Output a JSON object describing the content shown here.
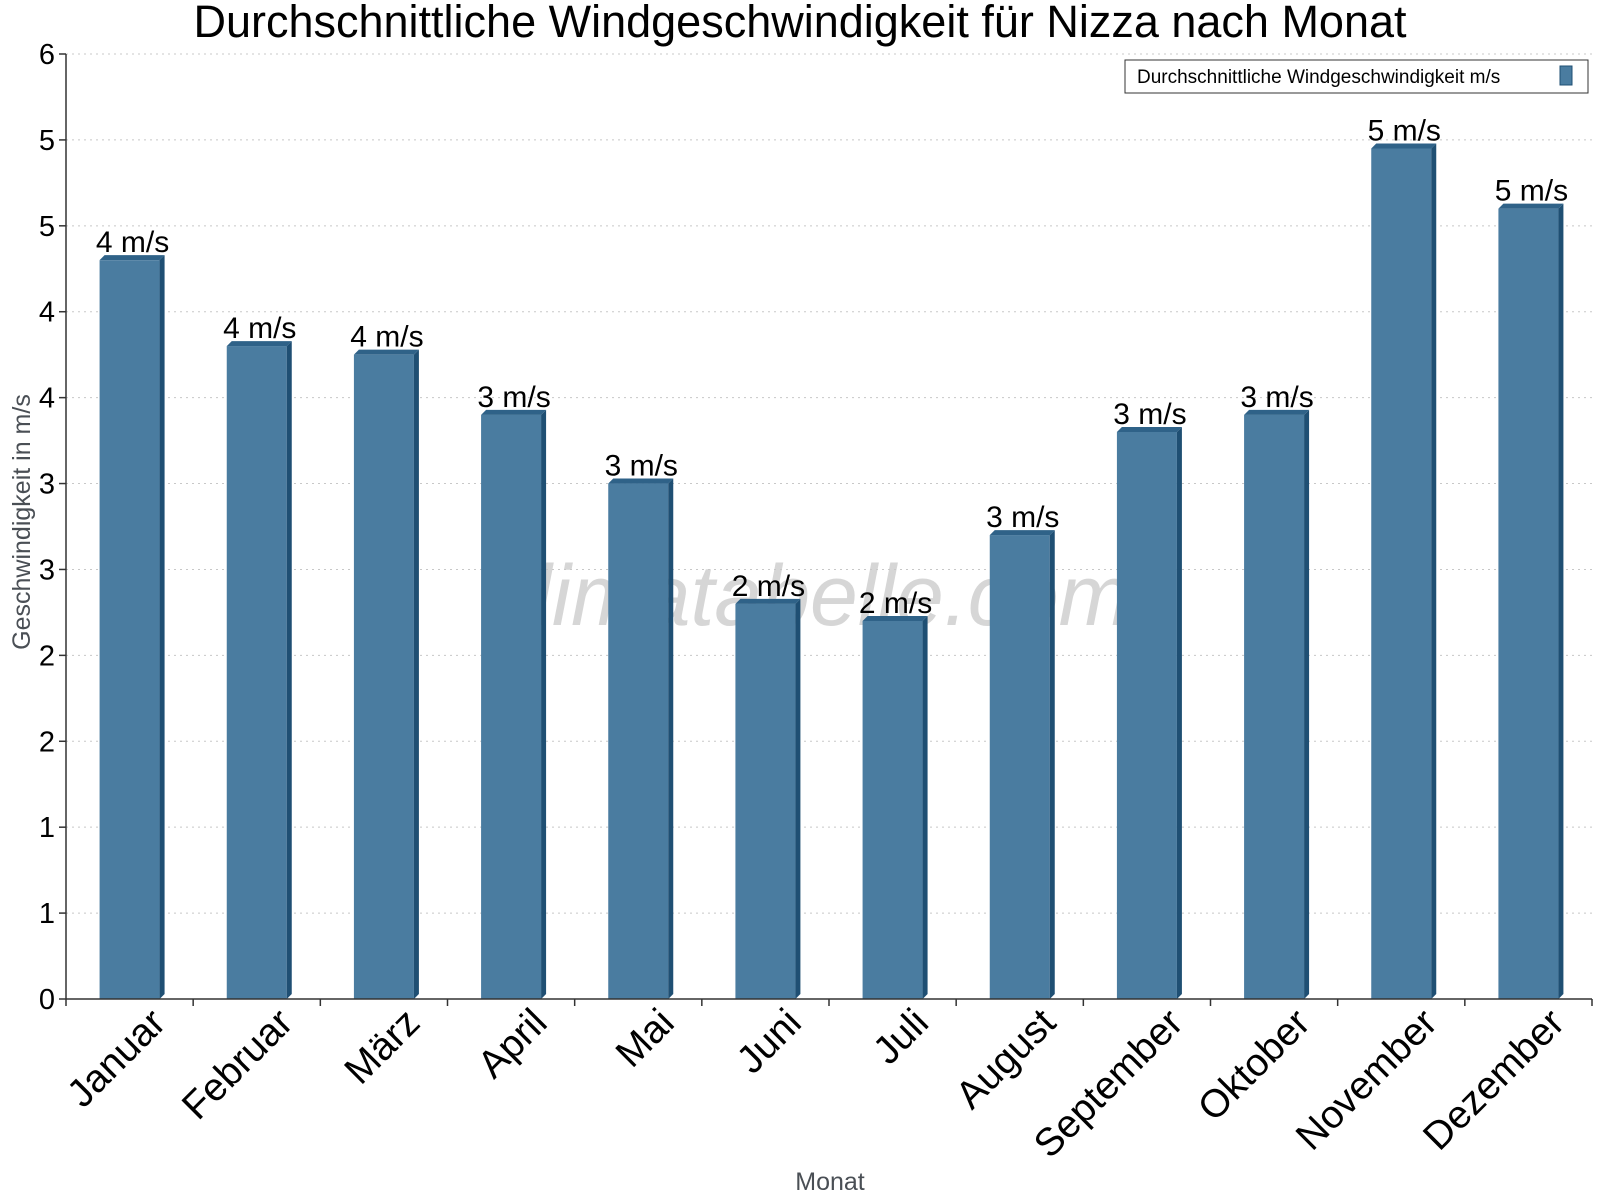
{
  "chart_data": {
    "type": "bar",
    "title": "Durchschnittliche Windgeschwindigkeit für Nizza nach Monat",
    "xlabel": "Monat",
    "ylabel": "Geschwindigkeit in m/s",
    "categories": [
      "Januar",
      "Februar",
      "März",
      "April",
      "Mai",
      "Juni",
      "Juli",
      "August",
      "September",
      "Oktober",
      "November",
      "Dezember"
    ],
    "series": [
      {
        "name": "Durchschnittliche Windgeschwindigkeit m/s",
        "values": [
          4.3,
          3.8,
          3.75,
          3.4,
          3.0,
          2.3,
          2.2,
          2.7,
          3.3,
          3.4,
          4.95,
          4.6
        ],
        "data_labels": [
          "4 m/s",
          "4 m/s",
          "4 m/s",
          "3 m/s",
          "3 m/s",
          "2 m/s",
          "2 m/s",
          "3 m/s",
          "3 m/s",
          "3 m/s",
          "5 m/s",
          "5 m/s"
        ],
        "color": "#4a7ca0"
      }
    ],
    "y_ticks": [
      0,
      0.5,
      1,
      1.5,
      2,
      2.5,
      3,
      3.5,
      4,
      4.5,
      5,
      5.5
    ],
    "y_tick_labels": [
      "0",
      "1",
      "1",
      "2",
      "2",
      "3",
      "3",
      "4",
      "4",
      "5",
      "5",
      "6"
    ],
    "ylim": [
      0,
      5.5
    ],
    "grid": true,
    "legend_position": "top-right",
    "watermark": "klimatabelle.com",
    "colors": {
      "bar_front": "#4a7ca0",
      "bar_side": "#1f4f73",
      "bar_top": "#2f6288",
      "grid": "#c8c8c8",
      "axis": "#333333"
    }
  }
}
